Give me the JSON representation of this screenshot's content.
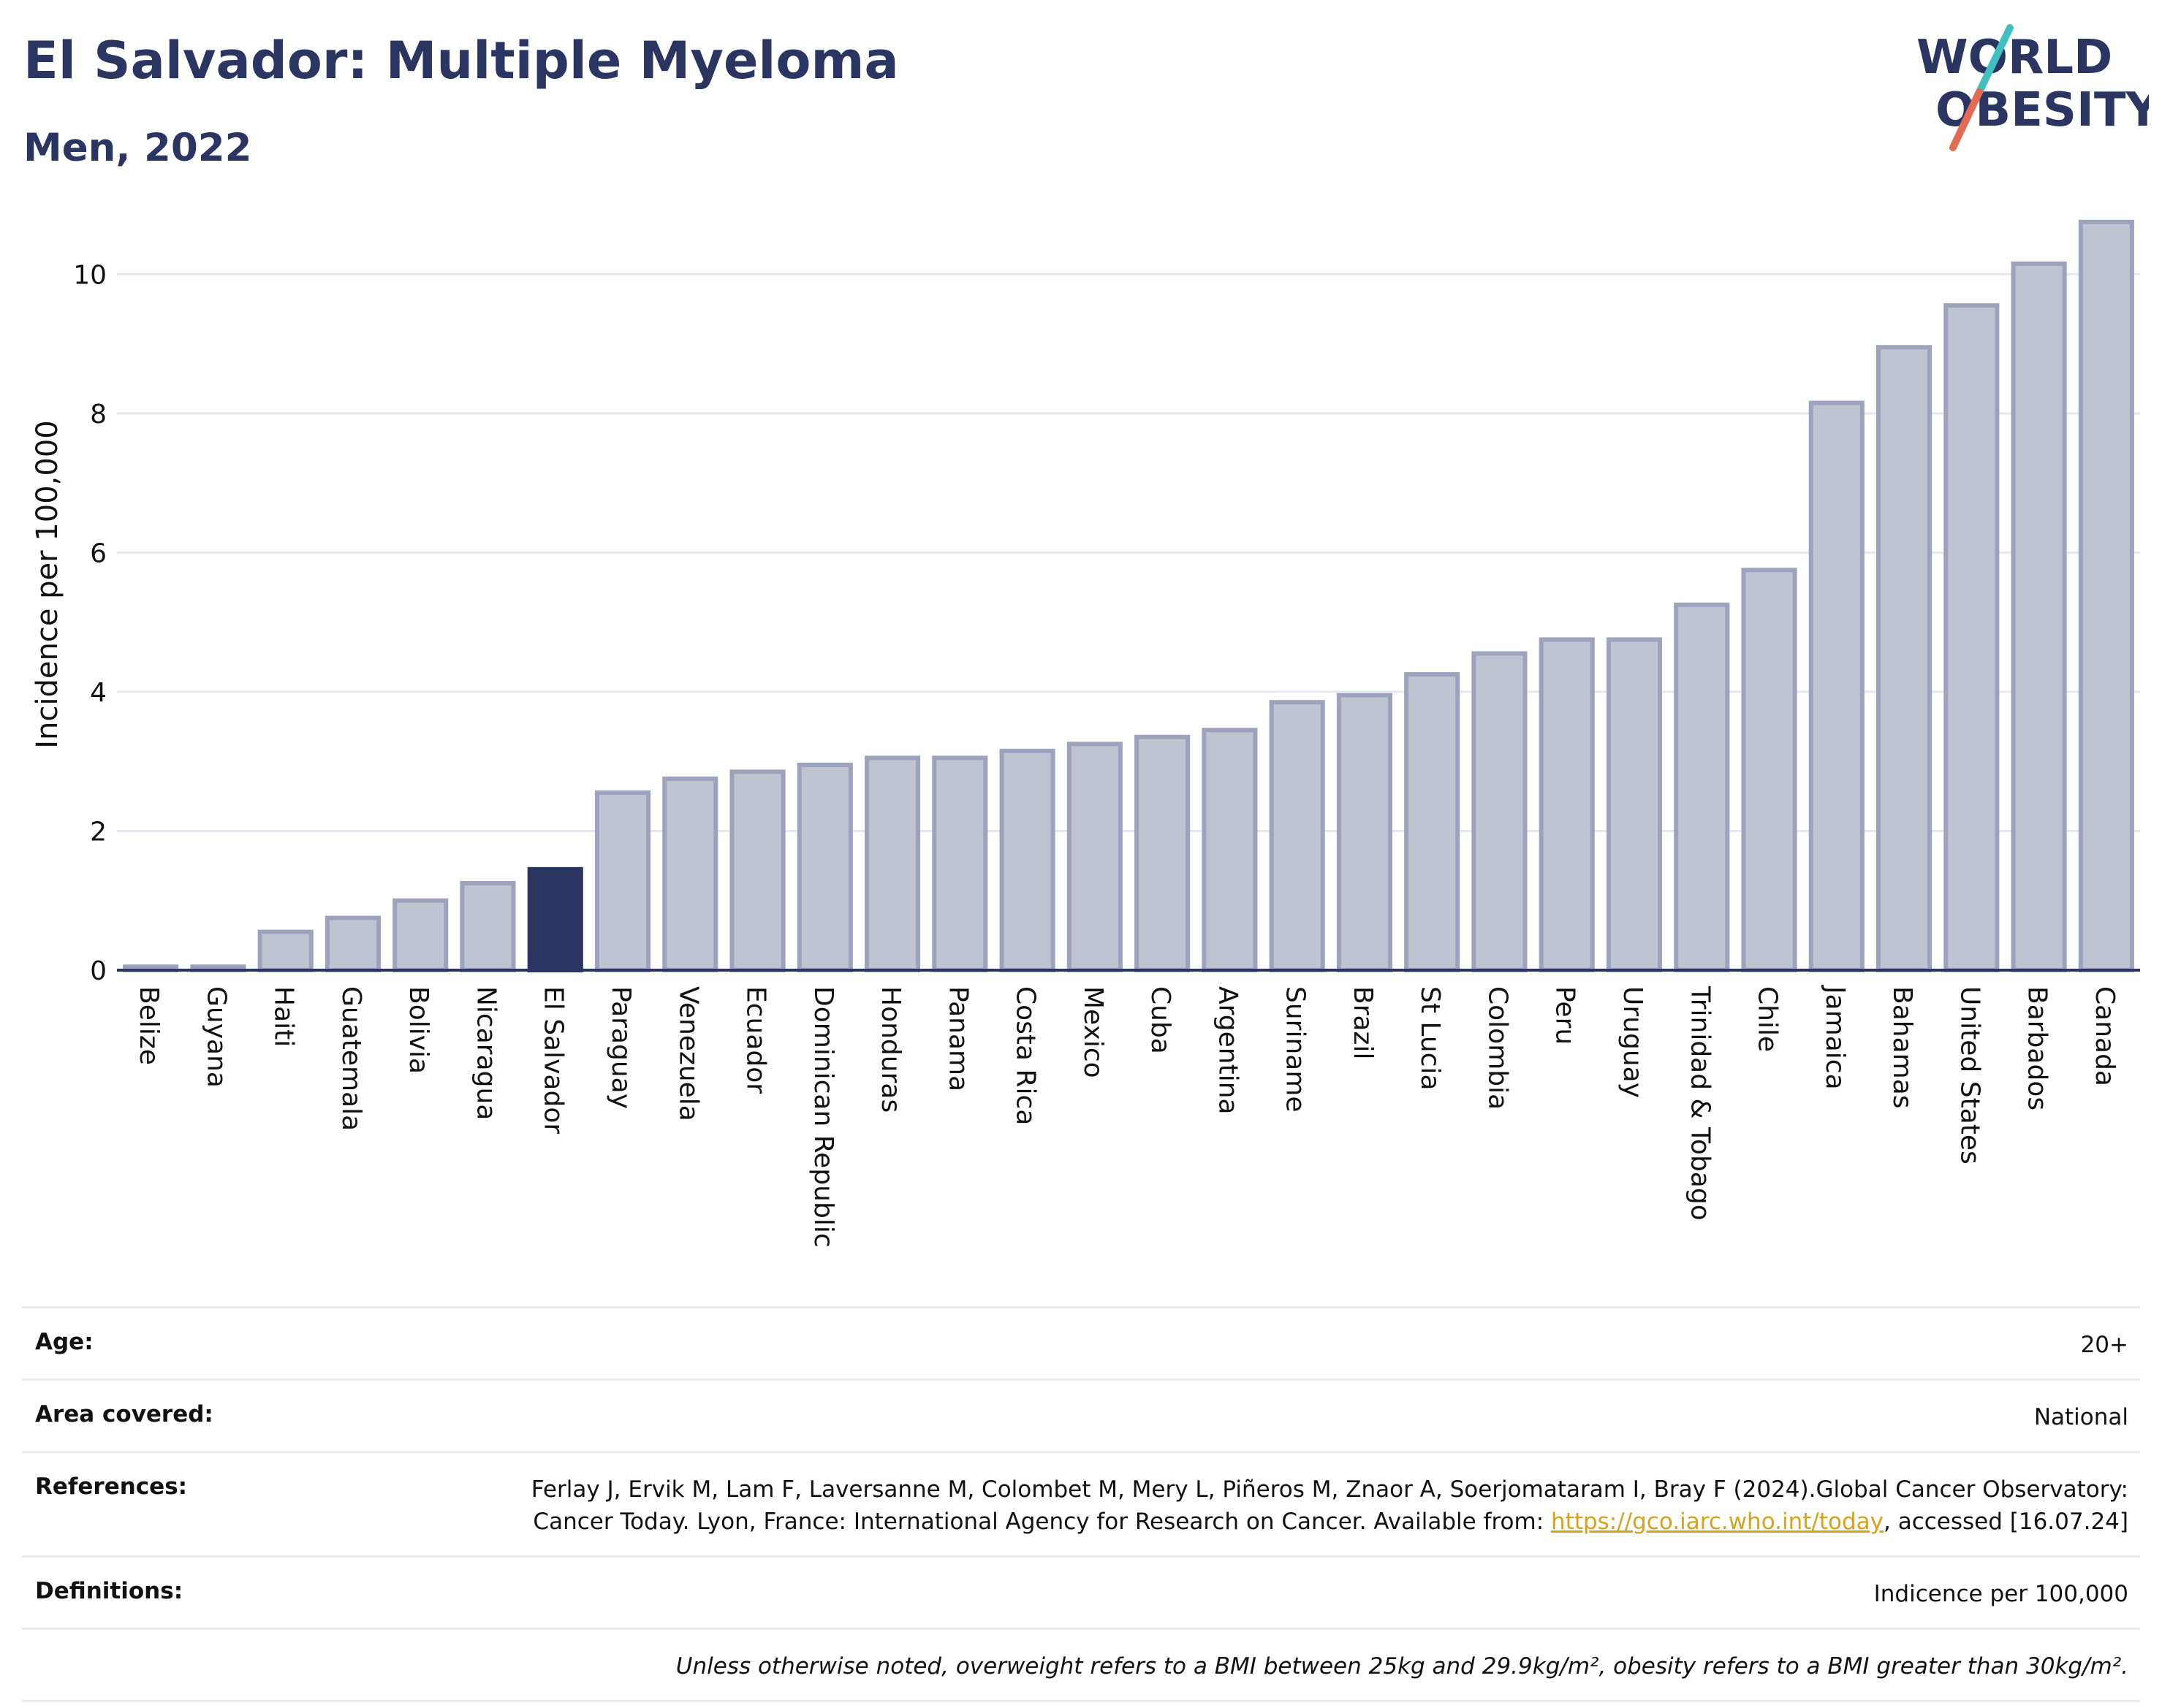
{
  "header": {
    "title": "El Salvador: Multiple Myeloma",
    "subtitle": "Men, 2022"
  },
  "logo": {
    "line1": "WORLD",
    "line2": "OBESITY",
    "slash_colors": [
      "#3fc1c0",
      "#e56a54"
    ]
  },
  "colors": {
    "highlight": "#2a3561",
    "bar_fill": "#c0c3d0",
    "bar_stroke": "#9ea3bd",
    "grid": "#e6e8ef"
  },
  "chart_data": {
    "type": "bar",
    "ylabel": "Incidence per 100,000",
    "xlabel": "",
    "ylim": [
      0,
      11
    ],
    "yticks": [
      0,
      2,
      4,
      6,
      8,
      10
    ],
    "grid": true,
    "highlight": "El Salvador",
    "categories": [
      "Belize",
      "Guyana",
      "Haiti",
      "Guatemala",
      "Bolivia",
      "Nicaragua",
      "El Salvador",
      "Paraguay",
      "Venezuela",
      "Ecuador",
      "Dominican Republic",
      "Honduras",
      "Panama",
      "Costa Rica",
      "Mexico",
      "Cuba",
      "Argentina",
      "Suriname",
      "Brazil",
      "St Lucia",
      "Colombia",
      "Peru",
      "Uruguay",
      "Trinidad & Tobago",
      "Chile",
      "Jamaica",
      "Bahamas",
      "United States",
      "Barbados",
      "Canada"
    ],
    "values": [
      0.05,
      0.05,
      0.55,
      0.75,
      1.0,
      1.25,
      1.45,
      2.55,
      2.75,
      2.85,
      2.95,
      3.05,
      3.05,
      3.15,
      3.25,
      3.35,
      3.45,
      3.85,
      3.95,
      4.25,
      4.55,
      4.75,
      4.75,
      5.25,
      5.75,
      8.15,
      8.95,
      9.55,
      10.15,
      10.75
    ]
  },
  "meta": {
    "age_label": "Age:",
    "age_value": "20+",
    "area_label": "Area covered:",
    "area_value": "National",
    "references_label": "References:",
    "references_text_1": "Ferlay J, Ervik M, Lam F, Laversanne M, Colombet M, Mery L, Piñeros M, Znaor A, Soerjomataram I, Bray F (2024).Global Cancer Observatory: Cancer Today. Lyon, France: International Agency for Research on Cancer. Available from: ",
    "references_link": "https://gco.iarc.who.int/today",
    "references_text_2": ", accessed [16.07.24]",
    "definitions_label": "Definitions:",
    "definitions_value": "Indicence per 100,000",
    "note": "Unless otherwise noted, overweight refers to a BMI between 25kg and 29.9kg/m², obesity refers to a BMI greater than 30kg/m²."
  }
}
